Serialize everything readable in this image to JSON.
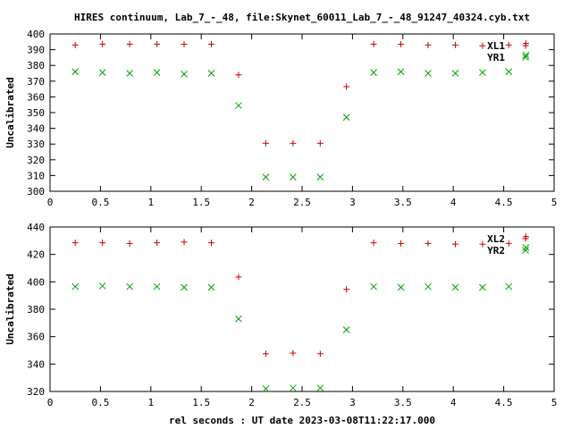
{
  "title": "HIRES continuum, Lab_7_-_48, file:Skynet_60011_Lab_7_-_48_91247_40324.cyb.txt",
  "xlabel": "rel seconds : UT date 2023-03-08T11:22:17.000",
  "colors": {
    "series_a": "#cc0000",
    "series_b": "#00a000"
  },
  "chart_data": [
    {
      "type": "scatter",
      "ylabel": "Uncalibrated",
      "xlim": [
        0,
        5
      ],
      "ylim": [
        300,
        400
      ],
      "xticks": [
        "0",
        "0.5",
        "1",
        "1.5",
        "2",
        "2.5",
        "3",
        "3.5",
        "4",
        "4.5",
        "5"
      ],
      "yticks": [
        "300",
        "310",
        "320",
        "330",
        "340",
        "350",
        "360",
        "370",
        "380",
        "390",
        "400"
      ],
      "legend_position": "top-right",
      "series": [
        {
          "name": "XL1",
          "marker": "plus",
          "x": [
            0.25,
            0.52,
            0.79,
            1.06,
            1.33,
            1.6,
            1.87,
            2.14,
            2.41,
            2.68,
            2.94,
            3.21,
            3.48,
            3.75,
            4.02,
            4.29,
            4.55,
            4.72
          ],
          "y": [
            393,
            393.5,
            393.5,
            393.5,
            393.5,
            393.5,
            374,
            330.5,
            330.5,
            330.5,
            366.5,
            393.5,
            393.5,
            393,
            393,
            392.5,
            393,
            394
          ]
        },
        {
          "name": "YR1",
          "marker": "cross",
          "x": [
            0.25,
            0.52,
            0.79,
            1.06,
            1.33,
            1.6,
            1.87,
            2.14,
            2.41,
            2.68,
            2.94,
            3.21,
            3.48,
            3.75,
            4.02,
            4.29,
            4.55,
            4.72
          ],
          "y": [
            376,
            375.5,
            375,
            375.5,
            374.5,
            375,
            354.5,
            309,
            309,
            309,
            347,
            375.5,
            376,
            375,
            375,
            375.5,
            376,
            386.5
          ]
        }
      ]
    },
    {
      "type": "scatter",
      "ylabel": "Uncalibrated",
      "xlim": [
        0,
        5
      ],
      "ylim": [
        320,
        440
      ],
      "xticks": [
        "0",
        "0.5",
        "1",
        "1.5",
        "2",
        "2.5",
        "3",
        "3.5",
        "4",
        "4.5",
        "5"
      ],
      "yticks": [
        "320",
        "340",
        "360",
        "380",
        "400",
        "420",
        "440"
      ],
      "legend_position": "top-right",
      "series": [
        {
          "name": "XL2",
          "marker": "plus",
          "x": [
            0.25,
            0.52,
            0.79,
            1.06,
            1.33,
            1.6,
            1.87,
            2.14,
            2.41,
            2.68,
            2.94,
            3.21,
            3.48,
            3.75,
            4.02,
            4.29,
            4.55,
            4.72
          ],
          "y": [
            428.5,
            428.5,
            428,
            428.5,
            429,
            428.5,
            403.5,
            347.5,
            348,
            347.5,
            394.5,
            428.5,
            428,
            428,
            427.5,
            427.5,
            428,
            433
          ]
        },
        {
          "name": "YR2",
          "marker": "cross",
          "x": [
            0.25,
            0.52,
            0.79,
            1.06,
            1.33,
            1.6,
            1.87,
            2.14,
            2.41,
            2.68,
            2.94,
            3.21,
            3.48,
            3.75,
            4.02,
            4.29,
            4.55,
            4.72
          ],
          "y": [
            396.5,
            397,
            396.5,
            396.5,
            396,
            396,
            373,
            322,
            322.5,
            322.5,
            365,
            396.5,
            396,
            396.5,
            396,
            396,
            396.5,
            425
          ]
        }
      ]
    }
  ]
}
